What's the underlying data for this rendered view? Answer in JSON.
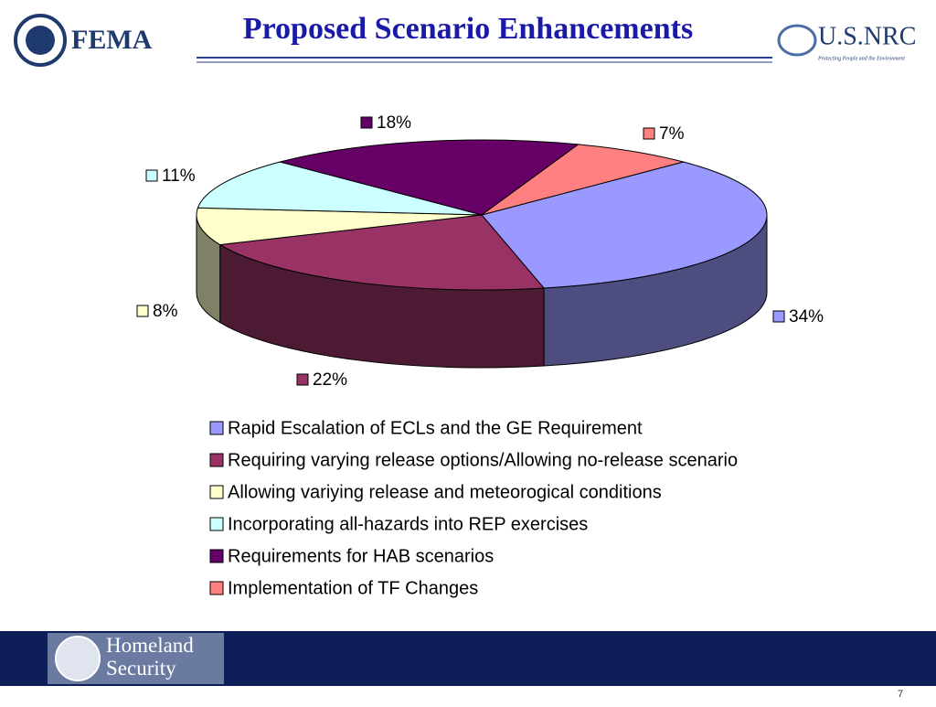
{
  "header": {
    "left_logo": "FEMA",
    "right_logo": "U.S.NRC",
    "right_tagline": "Protecting People and the Environment"
  },
  "chart_data": {
    "type": "pie3d",
    "title": "Proposed Scenario Enhancements",
    "categories": [
      "Rapid Escalation of ECLs and the GE Requirement",
      "Requiring varying release options/Allowing no-release scenario",
      "Allowing variying release and meteorogical conditions",
      "Incorporating all-hazards into REP exercises",
      "Requirements for HAB scenarios",
      "Implementation of TF Changes"
    ],
    "values": [
      34,
      22,
      8,
      11,
      18,
      7
    ],
    "value_labels": [
      "34%",
      "22%",
      "8%",
      "11%",
      "18%",
      "7%"
    ],
    "colors": [
      "#9999ff",
      "#993366",
      "#ffffcc",
      "#ccffff",
      "#660066",
      "#ff8080"
    ],
    "legend": "bottom"
  },
  "footer": {
    "logo": "Homeland Security",
    "page_number": "7"
  }
}
